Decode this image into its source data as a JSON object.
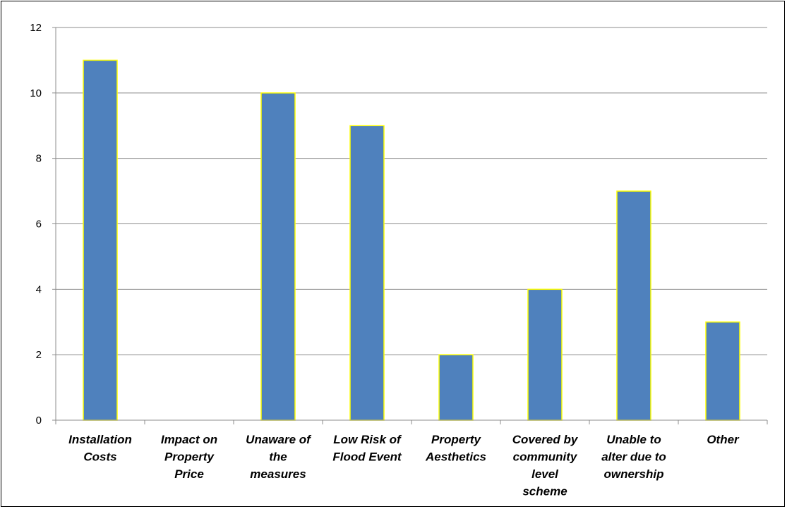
{
  "chart_data": {
    "type": "bar",
    "title": "",
    "xlabel": "",
    "ylabel": "",
    "categories": [
      [
        "Installation",
        "Costs"
      ],
      [
        "Impact on",
        "Property",
        "Price"
      ],
      [
        "Unaware of",
        "the",
        "measures"
      ],
      [
        "Low Risk of",
        "Flood Event"
      ],
      [
        "Property",
        "Aesthetics"
      ],
      [
        "Covered by",
        "community",
        "level",
        "scheme"
      ],
      [
        "Unable to",
        "alter due to",
        "ownership"
      ],
      [
        "Other"
      ]
    ],
    "values": [
      11,
      0,
      10,
      9,
      2,
      4,
      7,
      3
    ],
    "ylim": [
      0,
      12
    ],
    "yticks": [
      "0",
      "2",
      "4",
      "6",
      "8",
      "10",
      "12"
    ],
    "grid": true,
    "legend": "none",
    "colors": {
      "bar_fill": "#4f81bd",
      "bar_stroke": "#ffff00",
      "gridline": "#8c8c8c",
      "axis": "#8c8c8c",
      "frame": "#000000"
    }
  }
}
